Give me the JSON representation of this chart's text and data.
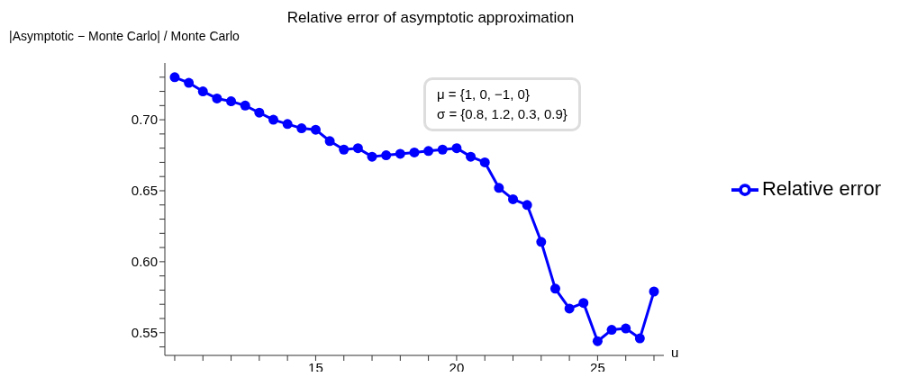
{
  "chart_data": {
    "type": "line",
    "title": "Relative error of asymptotic approximation",
    "ylabel": "|Asymptotic − Monte Carlo| / Monte Carlo",
    "xlabel": "u",
    "annotations": [
      "μ = {1, 0, −1, 0}",
      "σ = {0.8, 1.2, 0.3, 0.9}"
    ],
    "x": [
      10,
      10.5,
      11,
      11.5,
      12,
      12.5,
      13,
      13.5,
      14,
      14.5,
      15,
      15.5,
      16,
      16.5,
      17,
      17.5,
      18,
      18.5,
      19,
      19.5,
      20,
      20.5,
      21,
      21.5,
      22,
      22.5,
      23,
      23.5,
      24,
      24.5,
      25,
      25.5,
      26,
      26.5,
      27
    ],
    "series": [
      {
        "name": "Relative error",
        "color": "#0000ff",
        "values": [
          0.73,
          0.726,
          0.72,
          0.715,
          0.713,
          0.71,
          0.705,
          0.7,
          0.697,
          0.694,
          0.693,
          0.685,
          0.679,
          0.68,
          0.674,
          0.675,
          0.676,
          0.677,
          0.678,
          0.679,
          0.68,
          0.674,
          0.67,
          0.652,
          0.644,
          0.64,
          0.614,
          0.581,
          0.567,
          0.571,
          0.544,
          0.552,
          0.553,
          0.546,
          0.579
        ]
      }
    ],
    "xlim": [
      9.65,
      27.35
    ],
    "ylim": [
      0.534,
      0.74
    ],
    "xticks": [
      {
        "value": 10,
        "label": null
      },
      {
        "value": 11,
        "label": null
      },
      {
        "value": 12,
        "label": null
      },
      {
        "value": 13,
        "label": null
      },
      {
        "value": 14,
        "label": null
      },
      15,
      {
        "value": 16,
        "label": null
      },
      {
        "value": 17,
        "label": null
      },
      {
        "value": 18,
        "label": null
      },
      {
        "value": 19,
        "label": null
      },
      20,
      {
        "value": 21,
        "label": null
      },
      {
        "value": 22,
        "label": null
      },
      {
        "value": 23,
        "label": null
      },
      {
        "value": 24,
        "label": null
      },
      25,
      {
        "value": 26,
        "label": null
      },
      {
        "value": 27,
        "label": null
      }
    ],
    "yticks": [
      {
        "value": 0.54,
        "label": null
      },
      {
        "value": 0.55,
        "label": "0.55"
      },
      {
        "value": 0.56,
        "label": null
      },
      {
        "value": 0.57,
        "label": null
      },
      {
        "value": 0.58,
        "label": null
      },
      {
        "value": 0.59,
        "label": null
      },
      {
        "value": 0.6,
        "label": "0.60"
      },
      {
        "value": 0.61,
        "label": null
      },
      {
        "value": 0.62,
        "label": null
      },
      {
        "value": 0.63,
        "label": null
      },
      {
        "value": 0.64,
        "label": null
      },
      {
        "value": 0.65,
        "label": "0.65"
      },
      {
        "value": 0.66,
        "label": null
      },
      {
        "value": 0.67,
        "label": null
      },
      {
        "value": 0.68,
        "label": null
      },
      {
        "value": 0.69,
        "label": null
      },
      {
        "value": 0.7,
        "label": "0.70"
      },
      {
        "value": 0.71,
        "label": null
      },
      {
        "value": 0.72,
        "label": null
      },
      {
        "value": 0.73,
        "label": null
      }
    ],
    "grid": false,
    "legend": "right",
    "marker": "circle",
    "line_style": "solid"
  }
}
